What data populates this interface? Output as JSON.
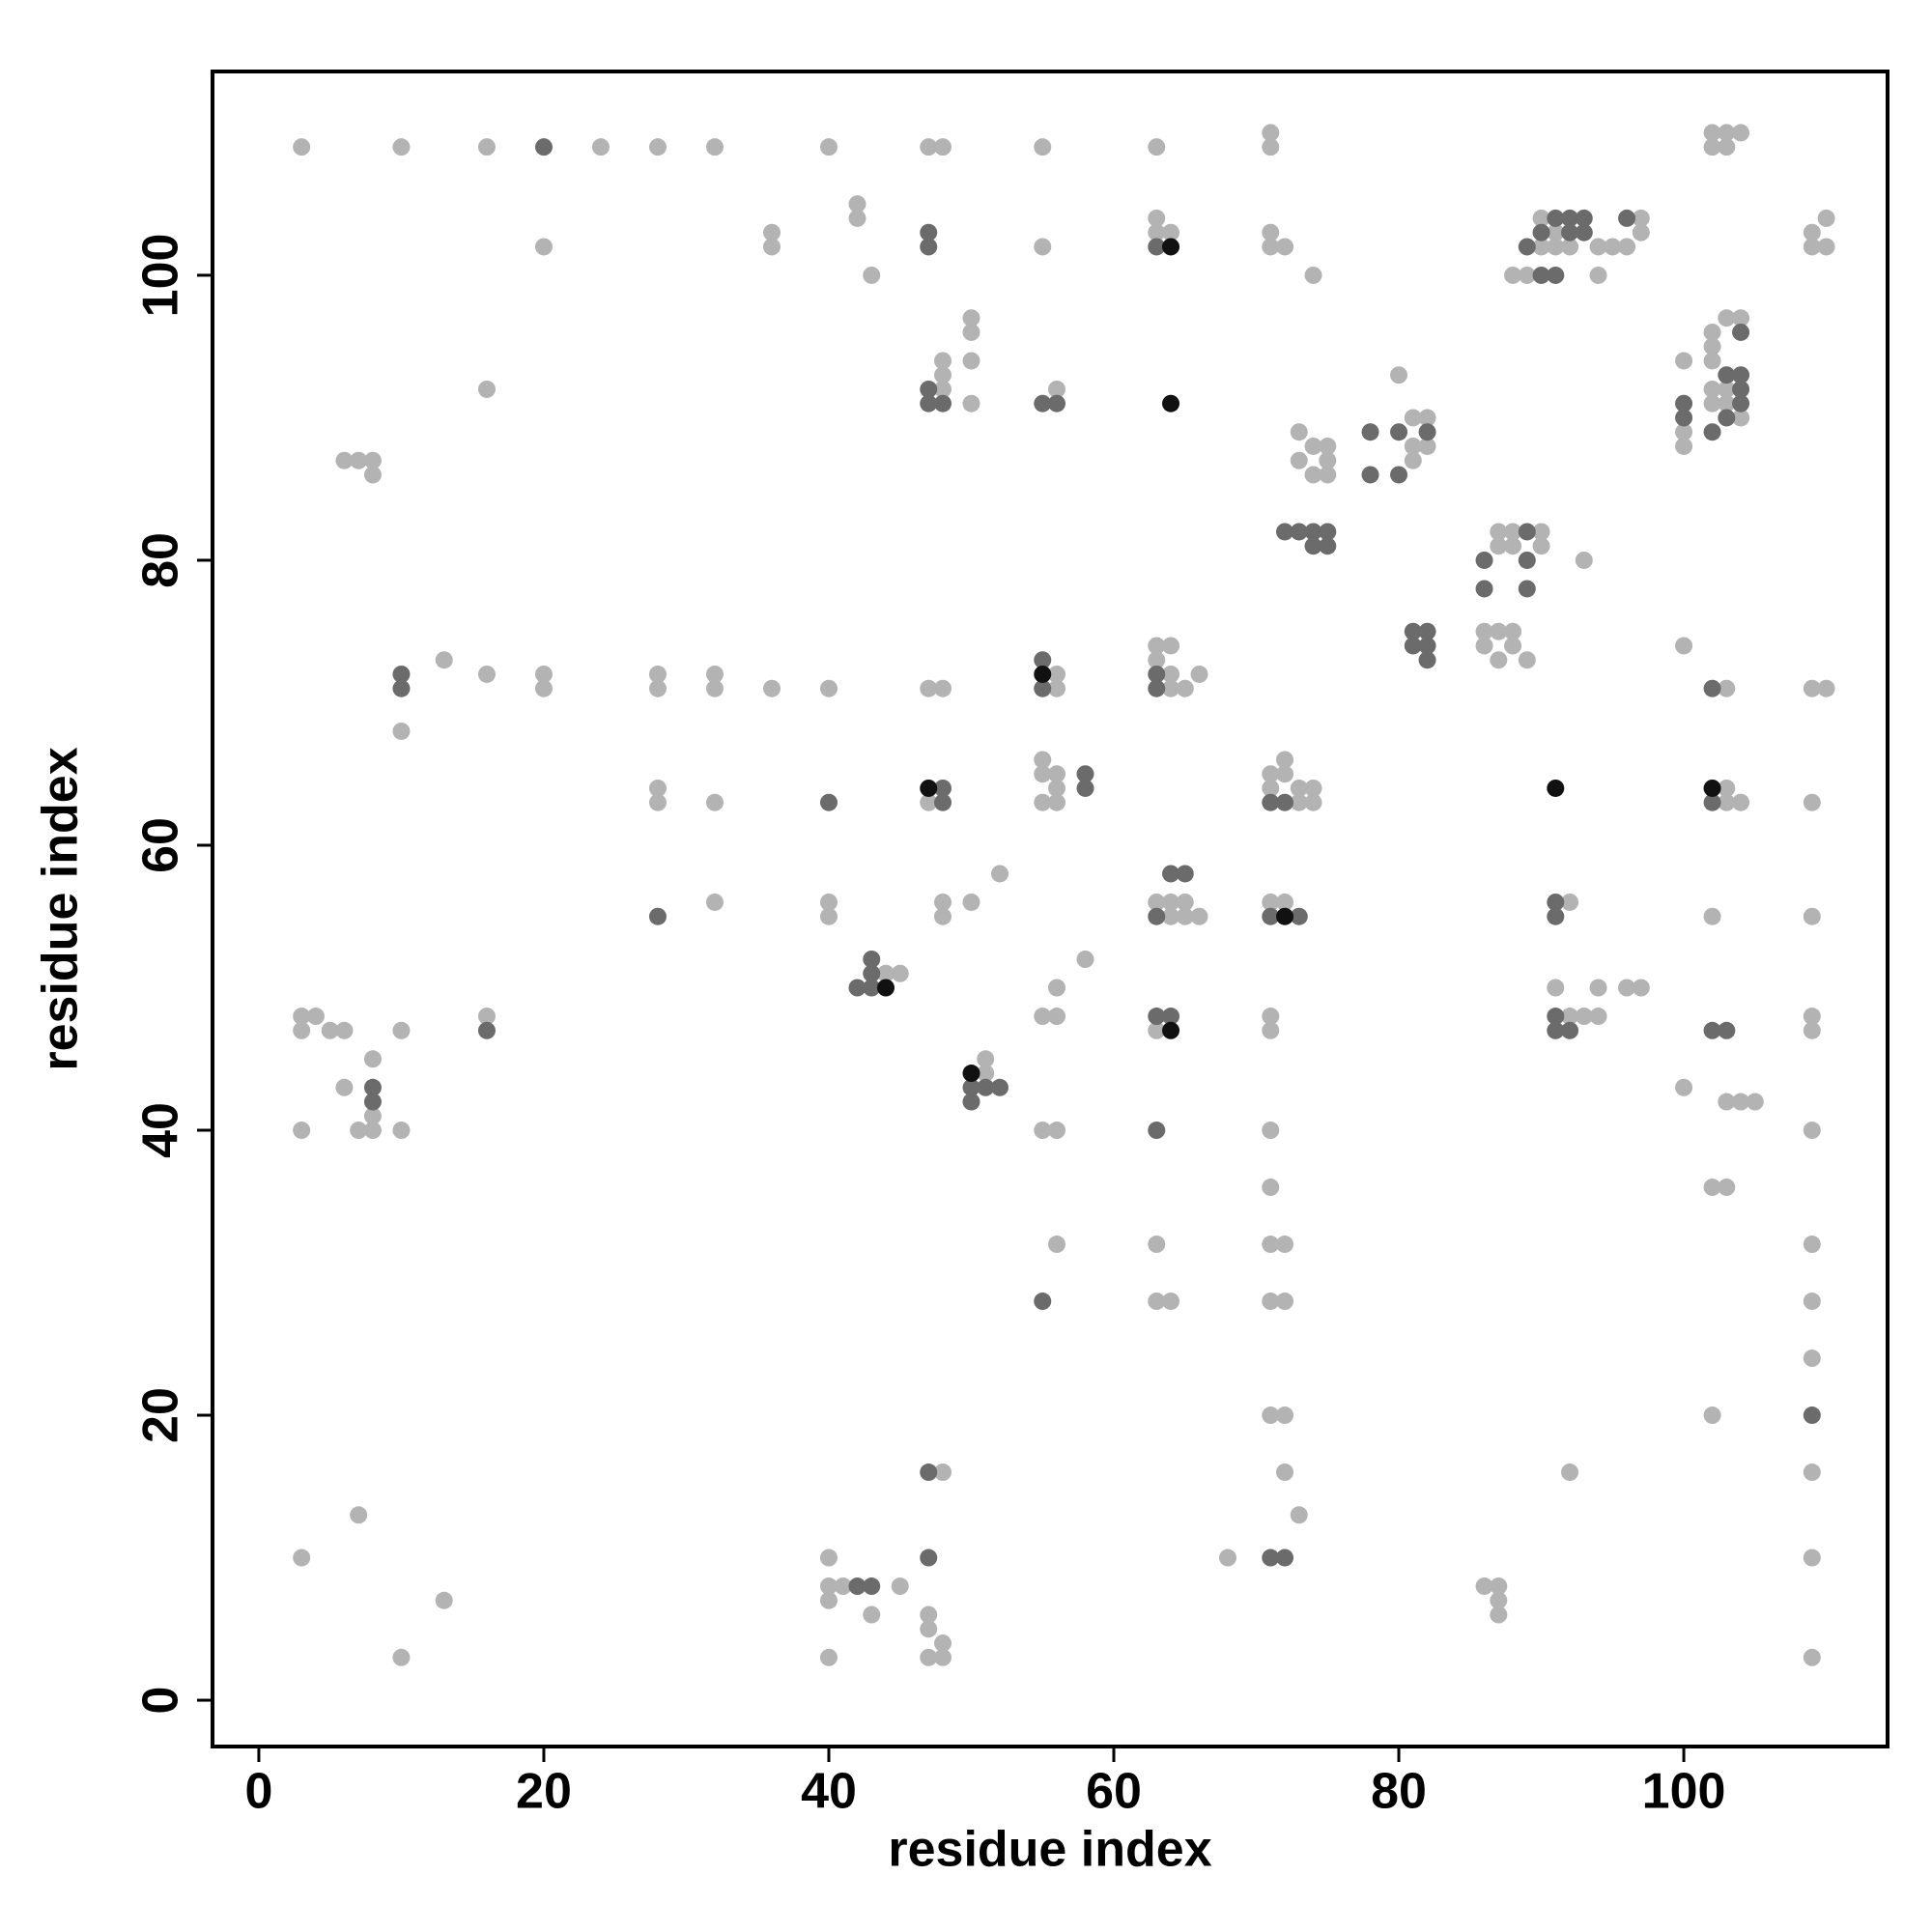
{
  "chart_data": {
    "type": "scatter",
    "xlabel": "residue index",
    "ylabel": "residue index",
    "xlim": [
      -3.25,
      114.3
    ],
    "ylim": [
      -3.25,
      114.3
    ],
    "xticks": [
      0,
      20,
      40,
      60,
      80,
      100
    ],
    "yticks": [
      0,
      20,
      40,
      60,
      80,
      100
    ],
    "grid": false,
    "series": [
      {
        "color": "#b3b3b3",
        "x": [
          3,
          10,
          16,
          24,
          28,
          32,
          40,
          47,
          48,
          55,
          63,
          71,
          71,
          102,
          103,
          104,
          102,
          103,
          20,
          36,
          55,
          71,
          72,
          109,
          110,
          36,
          63,
          64,
          71,
          109,
          42,
          63,
          110,
          42,
          43,
          74,
          88,
          89,
          94,
          90,
          91,
          91,
          92,
          90,
          94,
          95,
          96,
          97,
          97,
          50,
          103,
          104,
          50,
          102,
          102,
          48,
          50,
          100,
          102,
          48,
          80,
          16,
          48,
          56,
          102,
          103,
          50,
          102,
          103,
          81,
          82,
          104,
          73,
          100,
          74,
          75,
          82,
          81,
          100,
          6,
          7,
          8,
          73,
          75,
          81,
          8,
          74,
          75,
          87,
          88,
          90,
          87,
          88,
          90,
          93,
          86,
          87,
          88,
          86,
          88,
          100,
          63,
          64,
          13,
          63,
          87,
          89,
          16,
          20,
          28,
          32,
          56,
          64,
          66,
          20,
          28,
          32,
          36,
          40,
          47,
          48,
          56,
          64,
          65,
          103,
          109,
          110,
          10,
          55,
          72,
          55,
          56,
          71,
          72,
          28,
          56,
          71,
          73,
          74,
          103,
          28,
          32,
          47,
          55,
          56,
          73,
          74,
          103,
          104,
          109,
          52,
          32,
          40,
          48,
          50,
          63,
          64,
          65,
          71,
          72,
          92,
          40,
          48,
          64,
          65,
          66,
          102,
          109,
          58,
          44,
          45,
          56,
          91,
          94,
          96,
          97,
          3,
          4,
          16,
          55,
          56,
          71,
          92,
          93,
          94,
          109,
          3,
          5,
          6,
          10,
          63,
          71,
          109,
          8,
          51,
          51,
          6,
          100,
          103,
          104,
          105,
          8,
          3,
          7,
          8,
          10,
          55,
          56,
          71,
          109,
          71,
          102,
          103,
          56,
          63,
          71,
          72,
          109,
          63,
          64,
          71,
          72,
          109,
          109,
          71,
          72,
          102,
          48,
          72,
          92,
          109,
          7,
          73,
          3,
          40,
          68,
          109,
          40,
          41,
          45,
          86,
          87,
          13,
          40,
          87,
          43,
          47,
          87,
          47,
          48,
          10,
          40,
          47,
          48,
          109
        ],
        "values": [
          109,
          109,
          109,
          109,
          109,
          109,
          109,
          109,
          109,
          109,
          109,
          109,
          110,
          110,
          110,
          110,
          109,
          109,
          102,
          102,
          102,
          102,
          102,
          102,
          102,
          103,
          103,
          103,
          103,
          103,
          104,
          104,
          104,
          105,
          100,
          100,
          100,
          100,
          100,
          104,
          103,
          102,
          102,
          102,
          102,
          102,
          102,
          104,
          103,
          97,
          97,
          97,
          96,
          96,
          95,
          94,
          94,
          94,
          94,
          93,
          93,
          92,
          92,
          92,
          92,
          92,
          91,
          91,
          91,
          90,
          90,
          90,
          89,
          89,
          88,
          88,
          88,
          88,
          88,
          87,
          87,
          87,
          87,
          87,
          87,
          86,
          86,
          86,
          82,
          82,
          82,
          81,
          81,
          81,
          80,
          75,
          75,
          75,
          74,
          74,
          74,
          74,
          74,
          73,
          73,
          73,
          73,
          72,
          72,
          72,
          72,
          72,
          72,
          72,
          71,
          71,
          71,
          71,
          71,
          71,
          71,
          71,
          71,
          71,
          71,
          71,
          71,
          68,
          66,
          66,
          65,
          65,
          65,
          65,
          64,
          64,
          64,
          64,
          64,
          64,
          63,
          63,
          63,
          63,
          63,
          63,
          63,
          63,
          63,
          63,
          58,
          56,
          56,
          56,
          56,
          56,
          56,
          56,
          56,
          56,
          56,
          55,
          55,
          55,
          55,
          55,
          55,
          55,
          52,
          51,
          51,
          50,
          50,
          50,
          50,
          50,
          48,
          48,
          48,
          48,
          48,
          48,
          48,
          48,
          48,
          48,
          47,
          47,
          47,
          47,
          47,
          47,
          47,
          45,
          45,
          44,
          43,
          43,
          42,
          42,
          42,
          41,
          40,
          40,
          40,
          40,
          40,
          40,
          40,
          40,
          36,
          36,
          36,
          32,
          32,
          32,
          32,
          32,
          28,
          28,
          28,
          28,
          28,
          24,
          20,
          20,
          20,
          16,
          16,
          16,
          16,
          13,
          13,
          10,
          10,
          10,
          10,
          8,
          8,
          8,
          8,
          8,
          7,
          7,
          7,
          6,
          6,
          6,
          5,
          4,
          3,
          3,
          3,
          3,
          3
        ]
      },
      {
        "color": "#6b6b6b",
        "x": [
          20,
          47,
          63,
          89,
          47,
          90,
          92,
          93,
          91,
          92,
          93,
          96,
          90,
          91,
          104,
          103,
          104,
          47,
          104,
          47,
          48,
          55,
          56,
          100,
          104,
          100,
          103,
          78,
          80,
          82,
          102,
          78,
          80,
          72,
          73,
          74,
          75,
          89,
          74,
          75,
          86,
          89,
          86,
          89,
          81,
          82,
          81,
          82,
          55,
          82,
          10,
          63,
          10,
          55,
          63,
          102,
          58,
          48,
          58,
          40,
          48,
          71,
          72,
          102,
          64,
          65,
          91,
          28,
          63,
          71,
          73,
          91,
          43,
          43,
          42,
          43,
          63,
          64,
          91,
          16,
          91,
          92,
          102,
          103,
          8,
          50,
          51,
          52,
          8,
          50,
          63,
          55,
          109,
          47,
          47,
          71,
          72,
          42,
          43
        ],
        "values": [
          109,
          102,
          102,
          102,
          103,
          103,
          103,
          103,
          104,
          104,
          104,
          104,
          100,
          100,
          96,
          93,
          93,
          92,
          92,
          91,
          91,
          91,
          91,
          91,
          91,
          90,
          90,
          89,
          89,
          89,
          89,
          86,
          86,
          82,
          82,
          82,
          82,
          82,
          81,
          81,
          80,
          80,
          78,
          78,
          75,
          75,
          74,
          74,
          73,
          73,
          72,
          72,
          71,
          71,
          71,
          71,
          65,
          64,
          64,
          63,
          63,
          63,
          63,
          63,
          58,
          58,
          56,
          55,
          55,
          55,
          55,
          55,
          52,
          51,
          50,
          50,
          48,
          48,
          48,
          47,
          47,
          47,
          47,
          47,
          43,
          43,
          43,
          43,
          42,
          42,
          40,
          28,
          20,
          16,
          10,
          10,
          10,
          8,
          8
        ]
      },
      {
        "color": "#111111",
        "x": [
          64,
          64,
          55,
          47,
          91,
          102,
          72,
          44,
          64,
          50
        ],
        "values": [
          102,
          91,
          72,
          64,
          64,
          64,
          55,
          50,
          47,
          44
        ]
      }
    ]
  }
}
